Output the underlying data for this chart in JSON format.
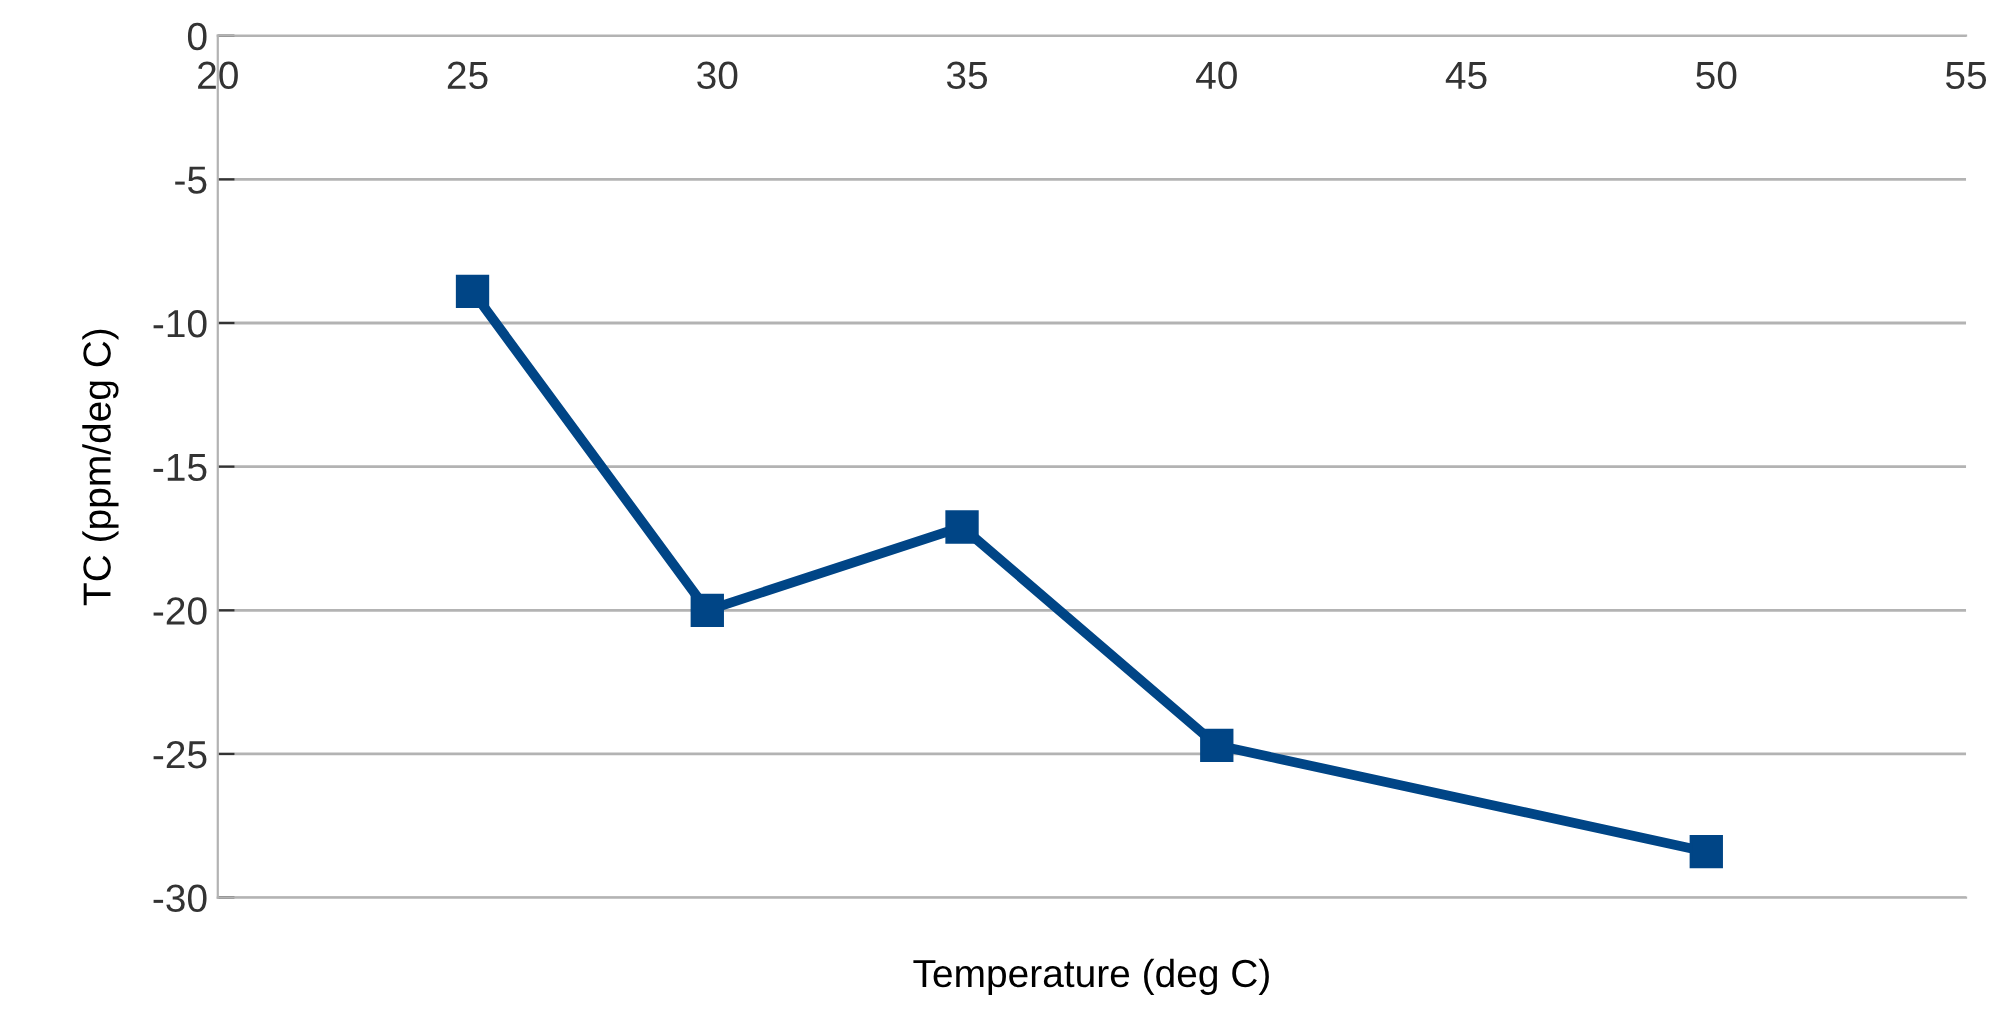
{
  "chart_data": {
    "type": "line",
    "xlabel": "Temperature (deg C)",
    "ylabel": "TC (ppm/deg C)",
    "x": [
      25.1,
      29.8,
      34.9,
      40,
      49.8
    ],
    "series": [
      {
        "color": "#004586",
        "values": [
          -8.9,
          -20,
          -17.1,
          -24.7,
          -28.4
        ]
      }
    ],
    "xlim": [
      20,
      55
    ],
    "xticks": [
      20,
      25,
      30,
      35,
      40,
      45,
      50,
      55
    ],
    "ylim": [
      -30,
      0
    ],
    "yticks": [
      -30,
      -25,
      -20,
      -15,
      -10,
      -5,
      0
    ],
    "grid": "y",
    "marker": "square",
    "line_style": "solid"
  }
}
